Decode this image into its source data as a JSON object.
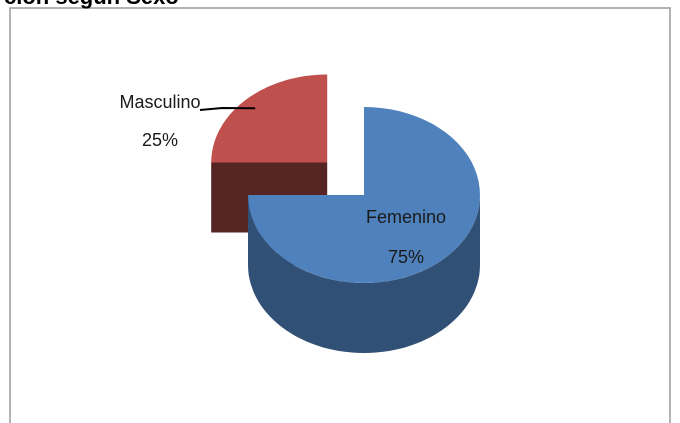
{
  "chart_data": {
    "type": "pie",
    "title": "ción según Sexo",
    "categories": [
      "Femenino",
      "Masculino"
    ],
    "values": [
      75,
      25
    ],
    "value_labels": [
      "75%",
      "25%"
    ],
    "colors": [
      "#4f81bd",
      "#c0504d"
    ]
  }
}
